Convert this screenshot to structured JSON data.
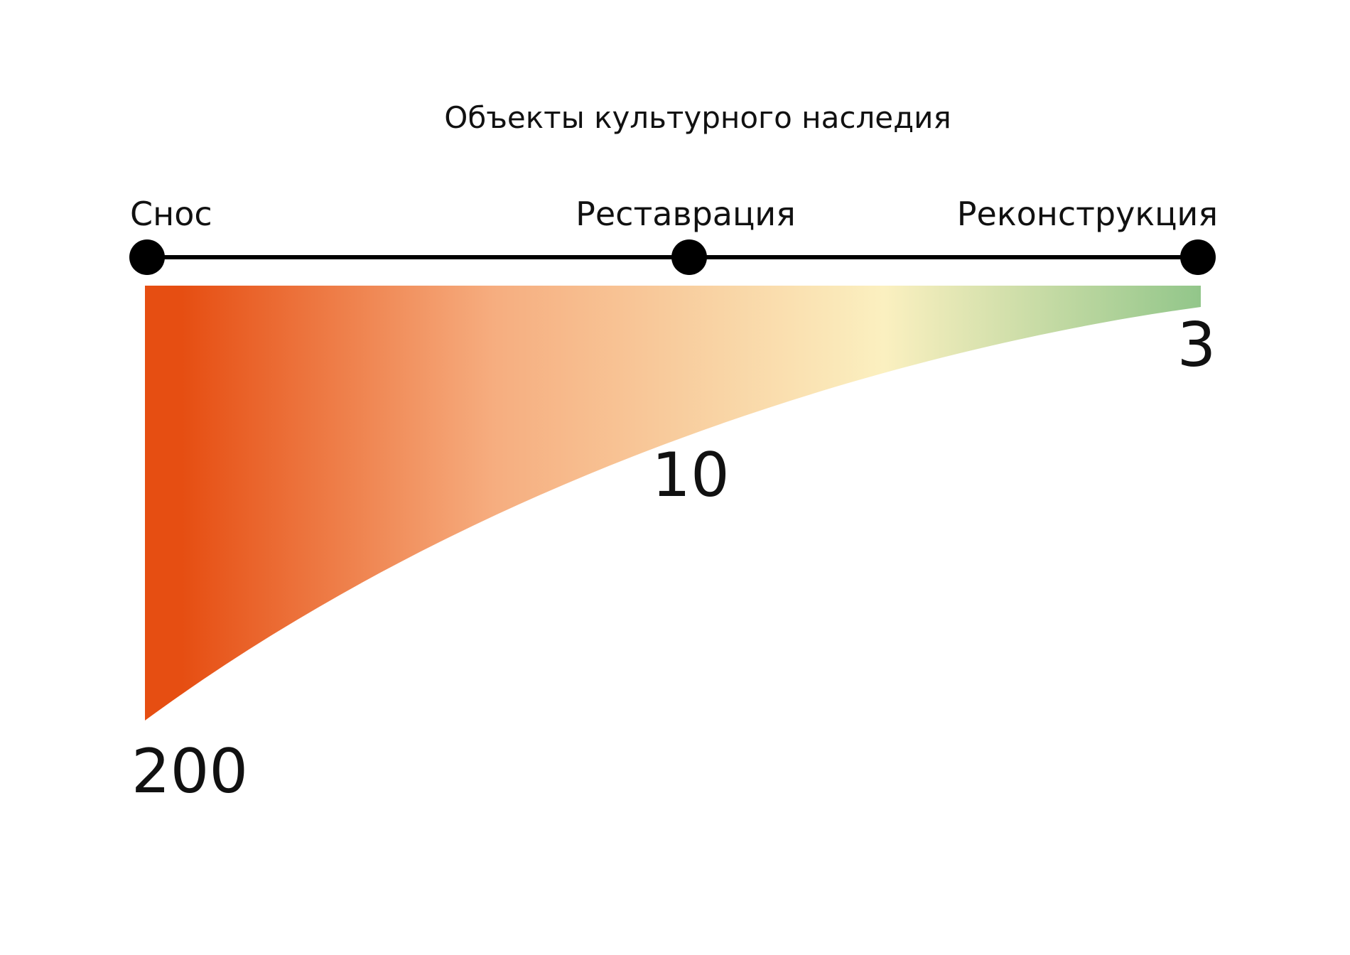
{
  "chart_data": {
    "type": "area",
    "title": "Объекты культурного наследия",
    "categories": [
      "Снос",
      "Реставрация",
      "Реконструкция"
    ],
    "values": [
      200,
      10,
      3
    ],
    "value_labels": [
      "200",
      "10",
      "3"
    ],
    "grid": false,
    "legend": "none",
    "colors": {
      "start": "#e64e12",
      "middle": "#fbf0c0",
      "end": "#92c68a",
      "axis": "#000000"
    }
  }
}
